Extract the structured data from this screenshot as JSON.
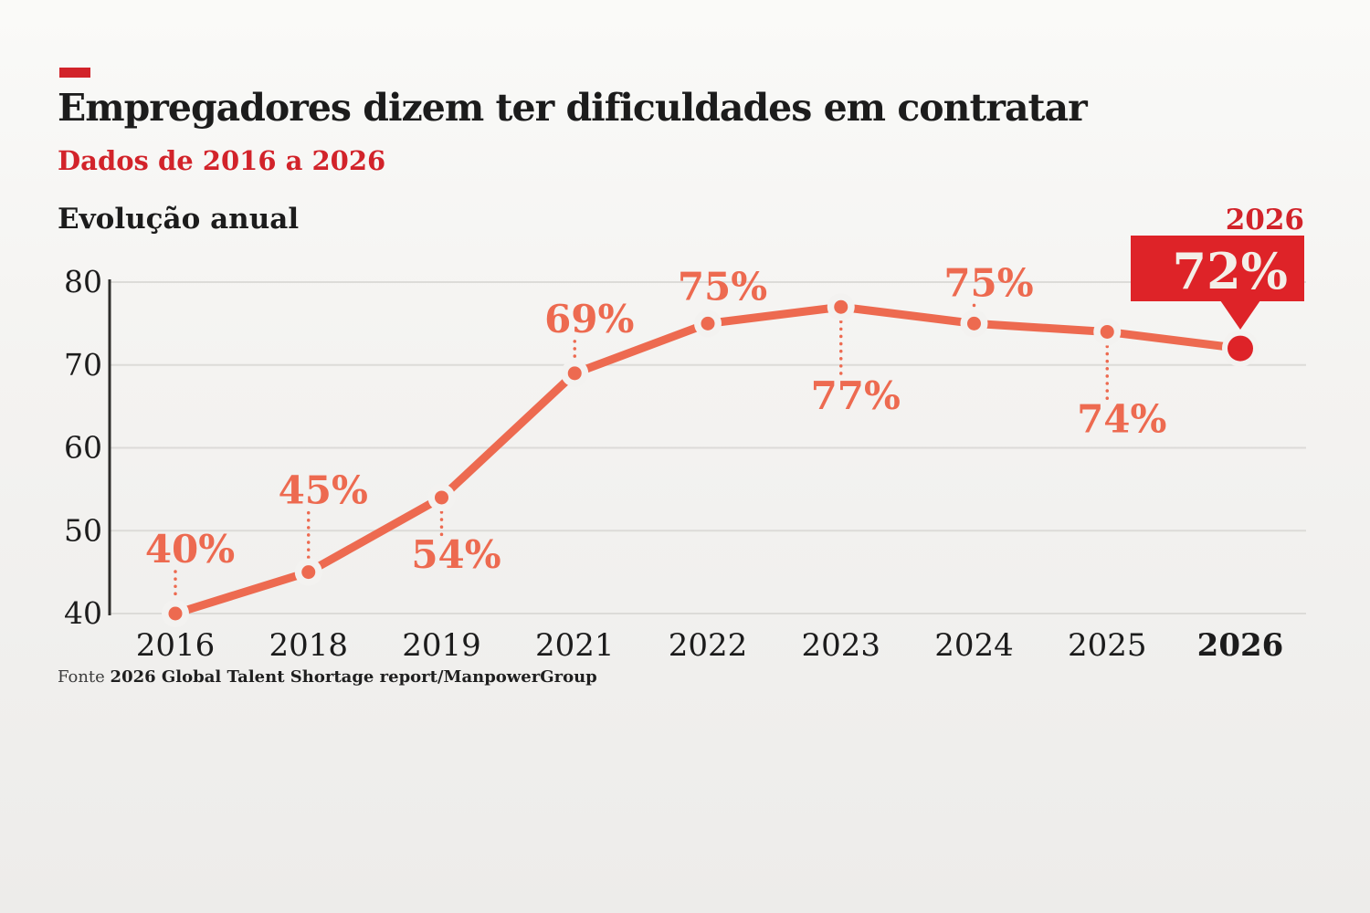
{
  "header": {
    "title": "Empregadores dizem ter dificuldades em contratar",
    "subtitle": "Dados de 2016 a 2026"
  },
  "source": {
    "prefix": "Fonte ",
    "text": "2026 Global Talent Shortage report/ManpowerGroup"
  },
  "colors": {
    "accent_red": "#d2232a",
    "callout_red": "#de2328",
    "callout_text": "#f3efe8",
    "line_salmon": "#ed6a50",
    "axis_dark": "#2e2d2b",
    "gridline": "#dcdbd8",
    "halo": "#f3f2f0",
    "text_dark": "#1c1c1c"
  },
  "chart_data": {
    "type": "line",
    "title": "Evolução anual",
    "categories": [
      "2016",
      "2018",
      "2019",
      "2021",
      "2022",
      "2023",
      "2024",
      "2025",
      "2026"
    ],
    "values": [
      40,
      45,
      54,
      69,
      75,
      77,
      75,
      74,
      72
    ],
    "data_labels": [
      "40%",
      "45%",
      "54%",
      "69%",
      "75%",
      "77%",
      "75%",
      "74%",
      "72%"
    ],
    "label_positions": [
      "above",
      "above",
      "below",
      "above",
      "above",
      "below",
      "above",
      "below",
      "callout"
    ],
    "callout": {
      "year_label": "2026",
      "value_label": "72%"
    },
    "xlabel": "",
    "ylabel": "",
    "ylim": [
      40,
      80
    ],
    "yticks": [
      40,
      50,
      60,
      70,
      80
    ],
    "grid": "horizontal",
    "legend": "none"
  }
}
